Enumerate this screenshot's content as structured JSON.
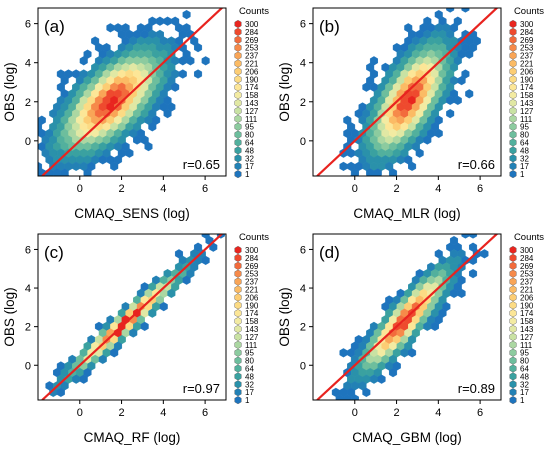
{
  "chart_data": [
    {
      "type": "hexbin",
      "panel_label": "(a)",
      "xlabel": "CMAQ_SENS (log)",
      "ylabel": "OBS (log)",
      "r_label": "r=0.65",
      "xticks": [
        0,
        2,
        4,
        6
      ],
      "yticks": [
        0,
        2,
        4,
        6
      ],
      "xlim": [
        -2,
        7
      ],
      "ylim": [
        -1.8,
        6.8
      ],
      "reference_line": "1:1",
      "reference_line_color": "#e8231f",
      "cluster": {
        "center": [
          1.5,
          2.0
        ],
        "spread": [
          1.3,
          1.4
        ],
        "correlation": 0.65
      },
      "legend_title": "Counts"
    },
    {
      "type": "hexbin",
      "panel_label": "(b)",
      "xlabel": "CMAQ_MLR (log)",
      "ylabel": "OBS (log)",
      "r_label": "r=0.66",
      "xticks": [
        0,
        2,
        4,
        6
      ],
      "yticks": [
        0,
        2,
        4,
        6
      ],
      "xlim": [
        -2,
        7
      ],
      "ylim": [
        -1.8,
        6.8
      ],
      "reference_line": "1:1",
      "reference_line_color": "#e8231f",
      "cluster": {
        "center": [
          2.6,
          2.1
        ],
        "spread": [
          1.0,
          1.5
        ],
        "correlation": 0.66
      },
      "legend_title": "Counts"
    },
    {
      "type": "hexbin",
      "panel_label": "(c)",
      "xlabel": "CMAQ_RF (log)",
      "ylabel": "OBS (log)",
      "r_label": "r=0.97",
      "xticks": [
        0,
        2,
        4,
        6
      ],
      "yticks": [
        0,
        2,
        4,
        6
      ],
      "xlim": [
        -2,
        7
      ],
      "ylim": [
        -1.8,
        6.8
      ],
      "reference_line": "1:1",
      "reference_line_color": "#e8231f",
      "cluster": {
        "center": [
          2.2,
          2.2
        ],
        "spread": [
          1.3,
          1.3
        ],
        "correlation": 0.97
      },
      "legend_title": "Counts"
    },
    {
      "type": "hexbin",
      "panel_label": "(d)",
      "xlabel": "CMAQ_GBM (log)",
      "ylabel": "OBS (log)",
      "r_label": "r=0.89",
      "xticks": [
        0,
        2,
        4,
        6
      ],
      "yticks": [
        0,
        2,
        4,
        6
      ],
      "xlim": [
        -2,
        7
      ],
      "ylim": [
        -1.8,
        6.8
      ],
      "reference_line": "1:1",
      "reference_line_color": "#e8231f",
      "cluster": {
        "center": [
          2.4,
          2.3
        ],
        "spread": [
          1.1,
          1.4
        ],
        "correlation": 0.89
      },
      "legend_title": "Counts"
    }
  ],
  "legend": {
    "title": "Counts",
    "levels": [
      300,
      284,
      269,
      253,
      237,
      221,
      206,
      190,
      174,
      158,
      143,
      127,
      111,
      95,
      80,
      64,
      48,
      32,
      17,
      1
    ],
    "colors": [
      "#e8251f",
      "#ee4a2e",
      "#f26b3c",
      "#f68a4a",
      "#f9a557",
      "#fbbb65",
      "#fccd74",
      "#fcdb84",
      "#fce697",
      "#f3eba2",
      "#e1e8a4",
      "#c9e2a3",
      "#abd7a2",
      "#8ccb9f",
      "#6dbe9d",
      "#52b09d",
      "#3aa1a0",
      "#2a91aa",
      "#2381b5",
      "#1e74bd"
    ]
  }
}
